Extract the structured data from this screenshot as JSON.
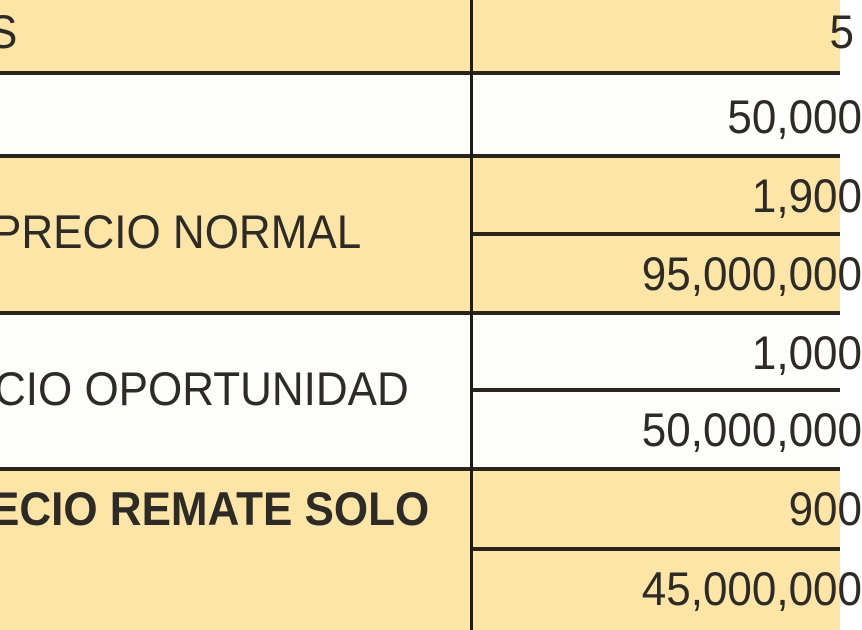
{
  "colors": {
    "tan": "#fce5a6",
    "white": "#fdfdfb",
    "border": "#2a241a"
  },
  "rows": [
    {
      "label": "S",
      "values": [
        "5"
      ]
    },
    {
      "label": "",
      "values": [
        "50,000"
      ]
    },
    {
      "label": "PRECIO NORMAL",
      "values": [
        "1,900",
        "95,000,000"
      ]
    },
    {
      "label": "CIO OPORTUNIDAD",
      "values": [
        "1,000",
        "50,000,000"
      ]
    },
    {
      "label": "ECIO REMATE SOLO",
      "values": [
        "900",
        "45,000,000"
      ]
    }
  ]
}
